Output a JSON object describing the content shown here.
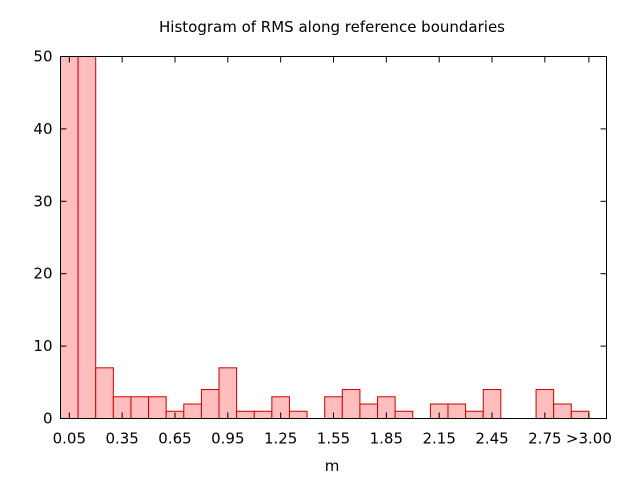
{
  "chart_data": {
    "type": "bar",
    "title": "Histogram of RMS along reference boundaries",
    "xlabel": "m",
    "ylabel": "",
    "ylim": [
      0,
      50
    ],
    "yticks": [
      0,
      10,
      20,
      30,
      40,
      50
    ],
    "xlim": [
      0,
      3.1
    ],
    "xticks": [
      {
        "value": 0.05,
        "label": "0.05"
      },
      {
        "value": 0.35,
        "label": "0.35"
      },
      {
        "value": 0.65,
        "label": "0.65"
      },
      {
        "value": 0.95,
        "label": "0.95"
      },
      {
        "value": 1.25,
        "label": "1.25"
      },
      {
        "value": 1.55,
        "label": "1.55"
      },
      {
        "value": 1.85,
        "label": "1.85"
      },
      {
        "value": 2.15,
        "label": "2.15"
      },
      {
        "value": 2.45,
        "label": "2.45"
      },
      {
        "value": 2.75,
        "label": "2.75"
      },
      {
        "value": 3.0,
        "label": ">3.00"
      }
    ],
    "bin_width": 0.1,
    "bin_centers": [
      0.05,
      0.15,
      0.25,
      0.35,
      0.45,
      0.55,
      0.65,
      0.75,
      0.85,
      0.95,
      1.05,
      1.15,
      1.25,
      1.35,
      1.45,
      1.55,
      1.65,
      1.75,
      1.85,
      1.95,
      2.05,
      2.15,
      2.25,
      2.35,
      2.45,
      2.55,
      2.65,
      2.75,
      2.85,
      2.95
    ],
    "values": [
      50,
      50,
      7,
      3,
      3,
      3,
      1,
      2,
      4,
      7,
      1,
      1,
      3,
      1,
      0,
      3,
      4,
      2,
      3,
      1,
      0,
      2,
      2,
      1,
      4,
      0,
      0,
      4,
      2,
      1
    ],
    "bar_fill": "#ffbdbd",
    "bar_stroke": "#cc0000",
    "grid": false,
    "legend": "none"
  }
}
